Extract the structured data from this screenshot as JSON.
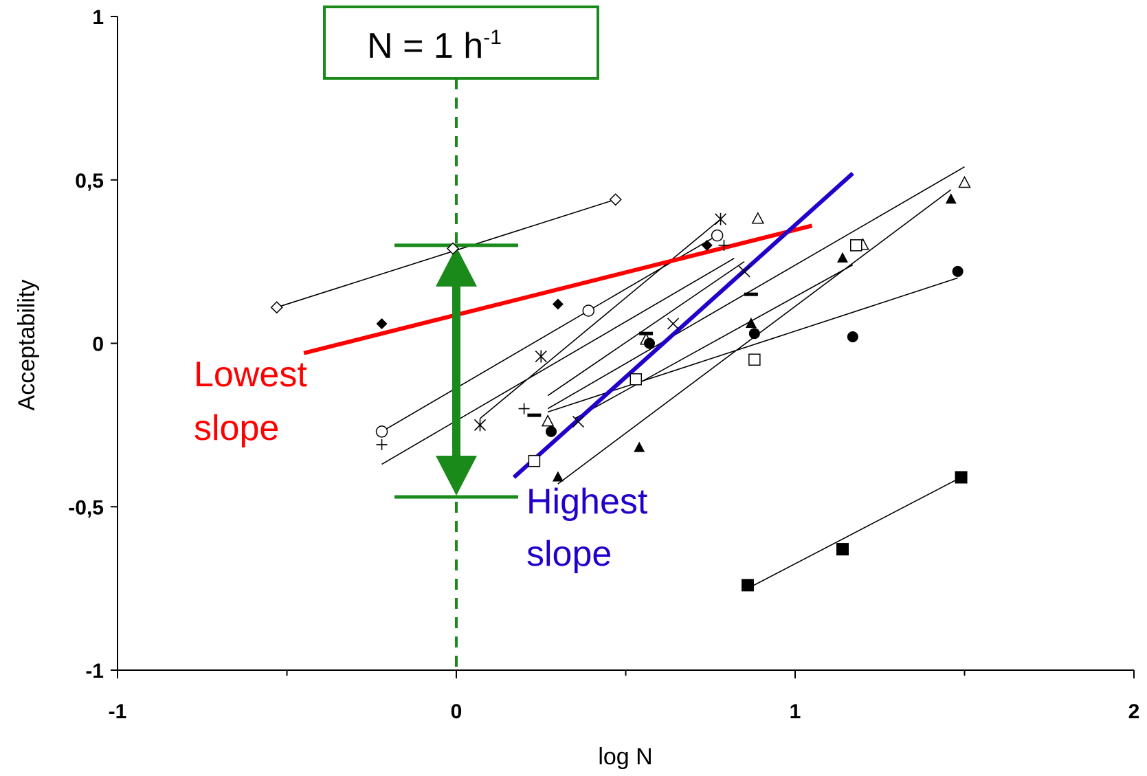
{
  "chart_data": {
    "type": "scatter",
    "xlabel": "log N",
    "ylabel": "Acceptability",
    "xlim": [
      -1,
      2
    ],
    "ylim": [
      -1,
      1
    ],
    "x_ticks": [
      -1,
      0,
      1,
      2
    ],
    "x_tick_labels": [
      "-1",
      "0",
      "1",
      "2"
    ],
    "y_ticks": [
      -1,
      -0.5,
      0,
      0.5,
      1
    ],
    "y_tick_labels": [
      "-1",
      "-0,5",
      "0",
      "0,5",
      "1"
    ],
    "grid": false,
    "legend": "none",
    "annotations": {
      "box_text_main": "N = 1 h",
      "box_text_sup": "-1",
      "lowest_line1": "Lowest",
      "lowest_line2": "slope",
      "highest_line1": "Highest",
      "highest_line2": "slope"
    },
    "reference": {
      "x": 0,
      "range_top": 0.3,
      "range_bottom": -0.47
    },
    "colors": {
      "lowest_slope": "#ff0000",
      "highest_slope": "#2200cc",
      "reference": "#1a8a1a",
      "series": "#000000"
    },
    "highlight_lines": [
      {
        "id": "lowest",
        "x": [
          -0.45,
          1.05
        ],
        "y": [
          -0.03,
          0.36
        ]
      },
      {
        "id": "highest",
        "x": [
          0.17,
          1.17
        ],
        "y": [
          -0.41,
          0.52
        ]
      }
    ],
    "series": [
      {
        "marker": "diamond-open",
        "points": [
          [
            -0.53,
            0.11
          ],
          [
            -0.01,
            0.29
          ],
          [
            0.47,
            0.44
          ]
        ],
        "fit": [
          [
            -0.53,
            0.11
          ],
          [
            0.47,
            0.44
          ]
        ]
      },
      {
        "marker": "diamond-filled",
        "points": [
          [
            -0.22,
            0.06
          ],
          [
            0.3,
            0.12
          ],
          [
            0.74,
            0.3
          ]
        ],
        "fit": []
      },
      {
        "marker": "circle-open",
        "points": [
          [
            -0.22,
            -0.27
          ],
          [
            0.39,
            0.1
          ],
          [
            0.77,
            0.33
          ]
        ],
        "fit": [
          [
            -0.22,
            -0.27
          ],
          [
            0.77,
            0.33
          ]
        ]
      },
      {
        "marker": "plus",
        "points": [
          [
            -0.22,
            -0.31
          ],
          [
            0.2,
            -0.2
          ],
          [
            0.79,
            0.3
          ]
        ],
        "fit": [
          [
            -0.22,
            -0.37
          ],
          [
            0.82,
            0.26
          ]
        ]
      },
      {
        "marker": "asterisk",
        "points": [
          [
            0.07,
            -0.25
          ],
          [
            0.25,
            -0.04
          ],
          [
            0.78,
            0.38
          ]
        ],
        "fit": [
          [
            0.07,
            -0.23
          ],
          [
            0.78,
            0.38
          ]
        ]
      },
      {
        "marker": "dash",
        "points": [
          [
            0.23,
            -0.22
          ],
          [
            0.56,
            0.03
          ],
          [
            0.87,
            0.15
          ]
        ],
        "fit": [
          [
            0.27,
            -0.16
          ],
          [
            0.85,
            0.25
          ]
        ]
      },
      {
        "marker": "triangle-open",
        "points": [
          [
            0.27,
            -0.24
          ],
          [
            0.56,
            0.01
          ],
          [
            0.89,
            0.38
          ],
          [
            1.2,
            0.3
          ],
          [
            1.5,
            0.49
          ]
        ],
        "fit": [
          [
            0.27,
            -0.2
          ],
          [
            1.5,
            0.54
          ]
        ]
      },
      {
        "marker": "cross",
        "points": [
          [
            0.36,
            -0.24
          ],
          [
            0.64,
            0.06
          ],
          [
            0.85,
            0.22
          ]
        ],
        "fit": []
      },
      {
        "marker": "circle-filled",
        "points": [
          [
            0.28,
            -0.27
          ],
          [
            0.57,
            0.0
          ],
          [
            0.88,
            0.03
          ],
          [
            1.17,
            0.02
          ],
          [
            1.48,
            0.22
          ]
        ],
        "fit": [
          [
            0.27,
            -0.21
          ],
          [
            1.48,
            0.2
          ]
        ]
      },
      {
        "marker": "square-open",
        "points": [
          [
            0.23,
            -0.36
          ],
          [
            0.53,
            -0.11
          ],
          [
            0.88,
            -0.05
          ],
          [
            1.18,
            0.3
          ]
        ],
        "fit": [
          [
            0.35,
            -0.23
          ],
          [
            1.17,
            0.24
          ]
        ]
      },
      {
        "marker": "triangle-filled",
        "points": [
          [
            0.3,
            -0.41
          ],
          [
            0.54,
            -0.32
          ],
          [
            0.87,
            0.06
          ],
          [
            1.14,
            0.26
          ],
          [
            1.46,
            0.44
          ]
        ],
        "fit": [
          [
            0.3,
            -0.43
          ],
          [
            1.46,
            0.47
          ]
        ]
      },
      {
        "marker": "square-filled",
        "points": [
          [
            0.86,
            -0.74
          ],
          [
            1.14,
            -0.63
          ],
          [
            1.49,
            -0.41
          ]
        ],
        "fit": [
          [
            0.86,
            -0.75
          ],
          [
            1.49,
            -0.41
          ]
        ]
      }
    ]
  }
}
